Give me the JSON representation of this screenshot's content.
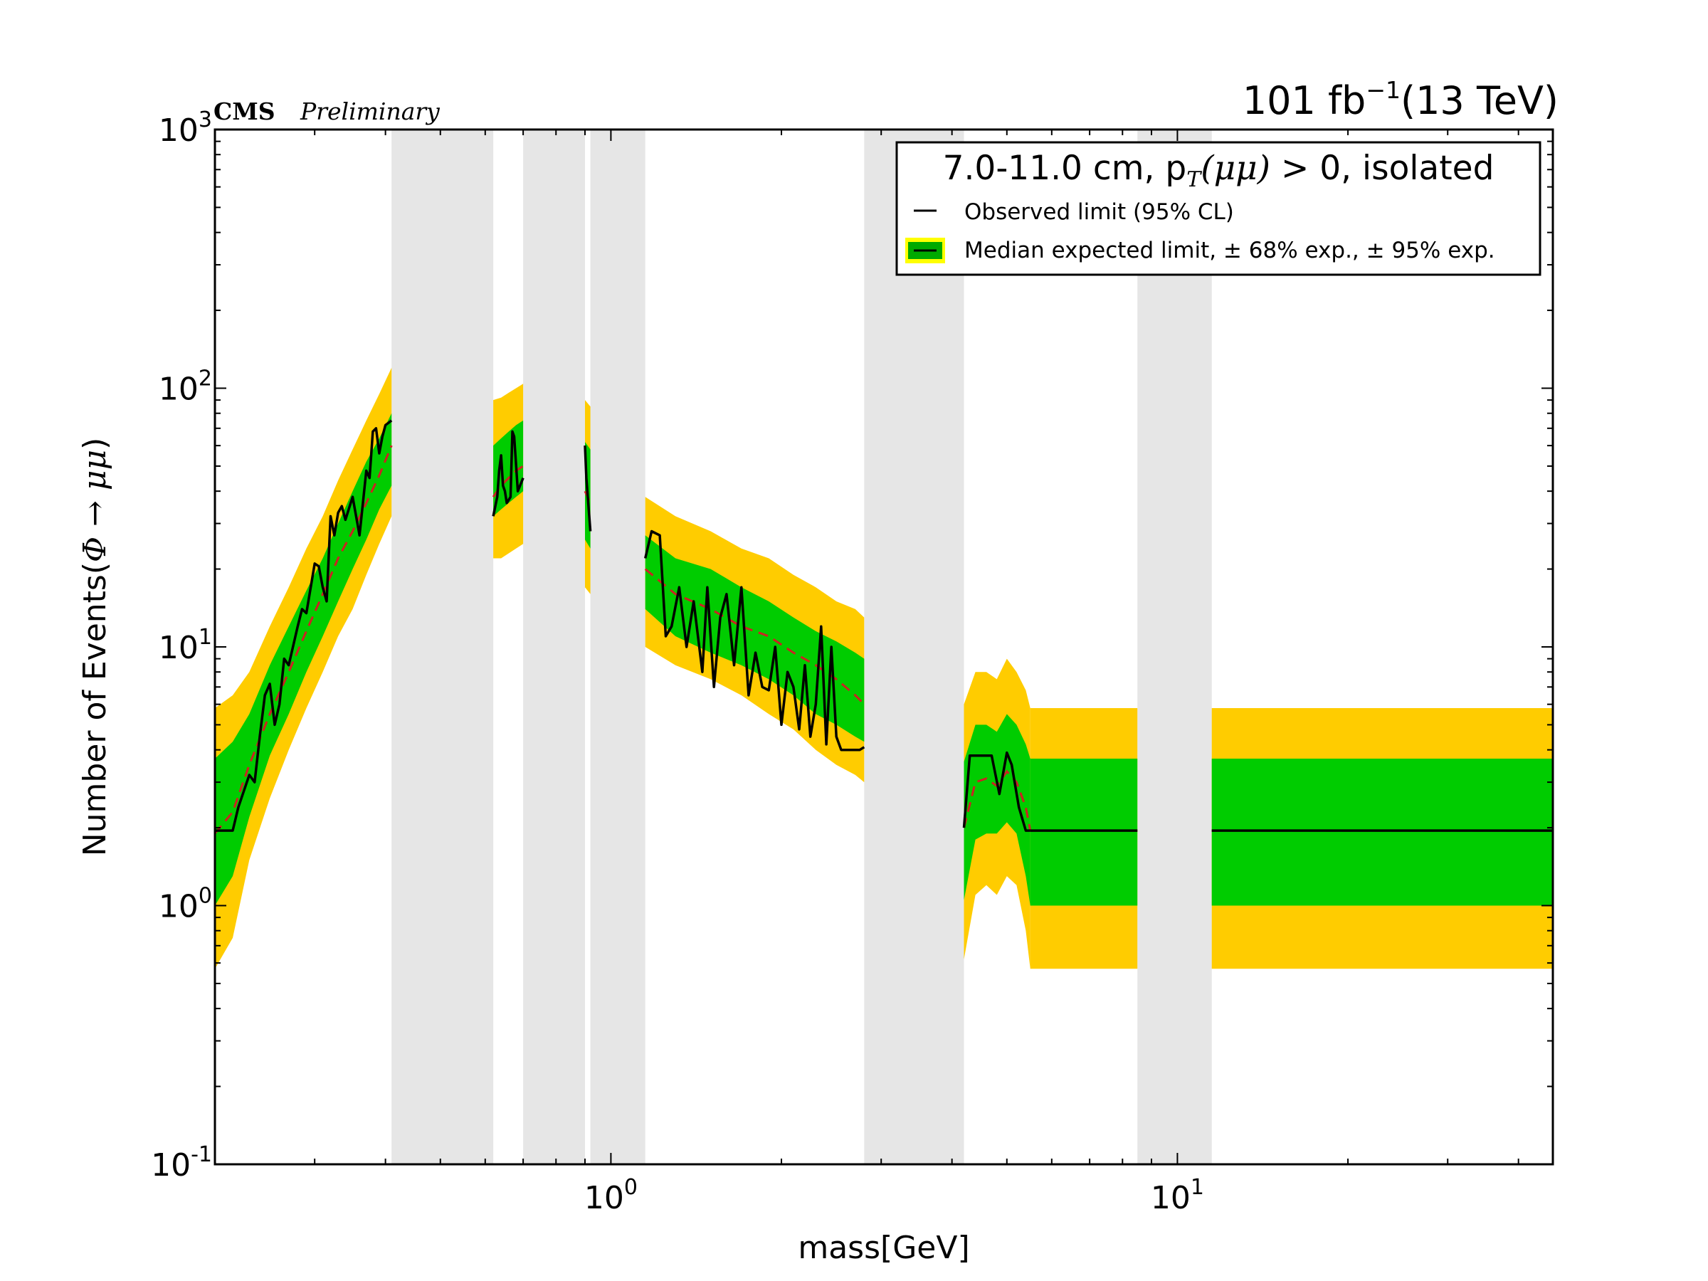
{
  "chart_data": {
    "type": "line",
    "title_left_bold": "CMS",
    "title_left_italic": "Preliminary",
    "title_right": {
      "pre": "101 fb",
      "sup": "−1",
      "post": "(13 TeV)"
    },
    "xlabel": "mass[GeV]",
    "ylabel": {
      "pre": "Number of Events(",
      "math": "Φ →  μμ",
      "post": ")"
    },
    "x_scale": "log",
    "y_scale": "log",
    "xlim": [
      0.2,
      46
    ],
    "ylim": [
      0.1,
      1000
    ],
    "x_ticks": [
      {
        "value": 1,
        "base": "10",
        "exp": "0"
      },
      {
        "value": 10,
        "base": "10",
        "exp": "1"
      }
    ],
    "y_ticks": [
      {
        "value": 0.1,
        "base": "10",
        "exp": "-1"
      },
      {
        "value": 1,
        "base": "10",
        "exp": "0"
      },
      {
        "value": 10,
        "base": "10",
        "exp": "1"
      },
      {
        "value": 100,
        "base": "10",
        "exp": "2"
      },
      {
        "value": 1000,
        "base": "10",
        "exp": "3"
      }
    ],
    "legend": {
      "placement": "top-right",
      "title_pre": "7.0-11.0 cm, p",
      "title_math": "T",
      "title_mid": "(μμ)",
      "title_post": " > 0, isolated",
      "observed_label": "Observed limit (95% CL)",
      "expected_label": "Median expected limit, ± 68% exp., ± 95% exp."
    },
    "colors": {
      "band95": "#ffcc00",
      "band68": "#00cc00",
      "observed": "#000000",
      "expected": "#cc2222",
      "masked": "#e6e6e6"
    },
    "masked_regions": [
      [
        0.41,
        0.62
      ],
      [
        0.7,
        0.9
      ],
      [
        0.92,
        1.15
      ],
      [
        2.8,
        4.2
      ],
      [
        8.5,
        11.5
      ]
    ],
    "segments": [
      {
        "x": [
          0.2,
          0.215,
          0.23,
          0.25,
          0.27,
          0.29,
          0.31,
          0.33,
          0.35,
          0.37,
          0.39,
          0.41
        ],
        "exp": [
          1.9,
          2.3,
          3.5,
          5.5,
          8.0,
          11.5,
          16.0,
          22.0,
          28.0,
          36.0,
          46.0,
          60.0
        ],
        "lo68": [
          1.0,
          1.3,
          2.2,
          3.8,
          5.5,
          8.0,
          11.0,
          15.0,
          20.0,
          26.0,
          34.0,
          42.0
        ],
        "hi68": [
          3.7,
          4.3,
          5.5,
          8.5,
          12.0,
          16.5,
          22.0,
          30.0,
          40.0,
          52.0,
          64.0,
          80.0
        ],
        "lo95": [
          0.57,
          0.75,
          1.5,
          2.6,
          4.0,
          5.8,
          8.0,
          11.0,
          14.0,
          19.0,
          25.0,
          32.0
        ],
        "hi95": [
          5.8,
          6.5,
          8.0,
          12.0,
          17.0,
          24.0,
          32.0,
          44.0,
          58.0,
          75.0,
          95.0,
          120.0
        ],
        "obs_x": [
          0.2,
          0.215,
          0.22,
          0.23,
          0.235,
          0.24,
          0.245,
          0.25,
          0.255,
          0.26,
          0.265,
          0.27,
          0.28,
          0.285,
          0.29,
          0.3,
          0.305,
          0.31,
          0.315,
          0.32,
          0.325,
          0.33,
          0.335,
          0.34,
          0.35,
          0.36,
          0.37,
          0.375,
          0.38,
          0.385,
          0.39,
          0.395,
          0.4,
          0.41
        ],
        "obs": [
          1.95,
          1.95,
          2.4,
          3.2,
          3.0,
          4.5,
          6.5,
          7.2,
          5.0,
          6.0,
          9.0,
          8.5,
          12.0,
          14.0,
          13.5,
          21.0,
          20.5,
          17.0,
          15.0,
          32.0,
          27.0,
          33.0,
          35.0,
          31.0,
          38.0,
          27.0,
          48.0,
          45.0,
          68.0,
          70.0,
          56.0,
          65.0,
          72.0,
          75.0
        ]
      },
      {
        "x": [
          0.62,
          0.64,
          0.66,
          0.68,
          0.7
        ],
        "exp": [
          38.0,
          42.0,
          45.0,
          48.0,
          50.0
        ],
        "lo68": [
          32.0,
          34.0,
          36.0,
          38.0,
          40.0
        ],
        "hi68": [
          60.0,
          64.0,
          68.0,
          72.0,
          75.0
        ],
        "lo95": [
          22.0,
          22.0,
          23.0,
          24.0,
          25.0
        ],
        "hi95": [
          90.0,
          92.0,
          96.0,
          100.0,
          104.0
        ],
        "obs_x": [
          0.62,
          0.63,
          0.635,
          0.64,
          0.645,
          0.65,
          0.655,
          0.665,
          0.67,
          0.675,
          0.685,
          0.7
        ],
        "obs": [
          32.0,
          38.0,
          48.0,
          55.0,
          42.0,
          40.0,
          36.0,
          38.0,
          68.0,
          65.0,
          40.0,
          45.0
        ]
      },
      {
        "x": [
          0.9,
          0.92
        ],
        "exp": [
          40.0,
          36.0
        ],
        "lo68": [
          26.0,
          24.0
        ],
        "hi68": [
          62.0,
          58.0
        ],
        "lo95": [
          17.0,
          16.0
        ],
        "hi95": [
          90.0,
          85.0
        ],
        "obs_x": [
          0.9,
          0.905,
          0.92
        ],
        "obs": [
          60.0,
          45.0,
          28.0
        ]
      },
      {
        "x": [
          1.15,
          1.3,
          1.5,
          1.7,
          1.9,
          2.1,
          2.3,
          2.5,
          2.7,
          2.8
        ],
        "exp": [
          20.0,
          16.0,
          14.0,
          12.0,
          11.0,
          9.5,
          8.5,
          7.5,
          6.5,
          6.0
        ],
        "lo68": [
          14.0,
          11.0,
          9.5,
          8.5,
          7.5,
          6.5,
          5.5,
          5.0,
          4.5,
          4.3
        ],
        "hi68": [
          27.0,
          22.0,
          20.0,
          17.0,
          15.0,
          13.0,
          11.5,
          10.5,
          9.5,
          9.0
        ],
        "lo95": [
          10.0,
          8.5,
          7.5,
          6.5,
          5.5,
          4.8,
          4.0,
          3.5,
          3.2,
          3.0
        ],
        "hi95": [
          38.0,
          32.0,
          28.0,
          24.0,
          22.0,
          19.0,
          17.0,
          15.0,
          14.0,
          13.0
        ],
        "obs_x": [
          1.15,
          1.18,
          1.22,
          1.25,
          1.28,
          1.32,
          1.36,
          1.4,
          1.45,
          1.48,
          1.52,
          1.56,
          1.6,
          1.65,
          1.7,
          1.75,
          1.8,
          1.85,
          1.9,
          1.95,
          2.0,
          2.05,
          2.1,
          2.15,
          2.2,
          2.25,
          2.3,
          2.35,
          2.4,
          2.45,
          2.5,
          2.55,
          2.6,
          2.65,
          2.7,
          2.75,
          2.8
        ],
        "obs": [
          22.0,
          28.0,
          27.0,
          11.0,
          12.0,
          17.0,
          10.0,
          15.0,
          8.0,
          17.0,
          7.0,
          13.0,
          16.0,
          8.5,
          17.0,
          6.5,
          9.5,
          7.0,
          6.8,
          10.0,
          5.0,
          8.0,
          7.0,
          4.8,
          8.5,
          4.5,
          6.0,
          12.0,
          4.2,
          10.0,
          4.5,
          4.0,
          4.0,
          4.0,
          4.0,
          4.0,
          4.1
        ]
      },
      {
        "x": [
          4.2,
          4.4,
          4.6,
          4.8,
          5.0,
          5.2,
          5.4,
          5.5
        ],
        "exp": [
          2.0,
          3.0,
          3.1,
          2.9,
          3.3,
          3.0,
          2.4,
          1.95
        ],
        "lo68": [
          1.05,
          1.8,
          1.9,
          1.9,
          2.1,
          1.9,
          1.3,
          1.0
        ],
        "hi68": [
          3.6,
          5.0,
          5.0,
          4.7,
          5.5,
          5.0,
          4.2,
          3.7
        ],
        "lo95": [
          0.62,
          1.1,
          1.2,
          1.1,
          1.3,
          1.2,
          0.8,
          0.57
        ],
        "hi95": [
          6.0,
          8.0,
          8.0,
          7.5,
          9.0,
          8.0,
          6.8,
          5.8
        ],
        "obs_x": [
          4.2,
          4.3,
          4.4,
          4.6,
          4.7,
          4.85,
          5.0,
          5.1,
          5.25,
          5.4,
          5.5
        ],
        "obs": [
          2.0,
          3.8,
          3.8,
          3.8,
          3.8,
          2.7,
          3.9,
          3.5,
          2.4,
          1.95,
          1.95
        ]
      },
      {
        "x": [
          5.5,
          8.5
        ],
        "exp": [
          1.95,
          1.95
        ],
        "lo68": [
          1.0,
          1.0
        ],
        "hi68": [
          3.7,
          3.7
        ],
        "lo95": [
          0.57,
          0.57
        ],
        "hi95": [
          5.8,
          5.8
        ],
        "obs_x": [
          5.5,
          8.5
        ],
        "obs": [
          1.95,
          1.95
        ]
      },
      {
        "x": [
          11.5,
          46.0
        ],
        "exp": [
          1.95,
          1.95
        ],
        "lo68": [
          1.0,
          1.0
        ],
        "hi68": [
          3.7,
          3.7
        ],
        "lo95": [
          0.57,
          0.57
        ],
        "hi95": [
          5.8,
          5.8
        ],
        "obs_x": [
          11.5,
          46.0
        ],
        "obs": [
          1.95,
          1.95
        ]
      }
    ]
  }
}
